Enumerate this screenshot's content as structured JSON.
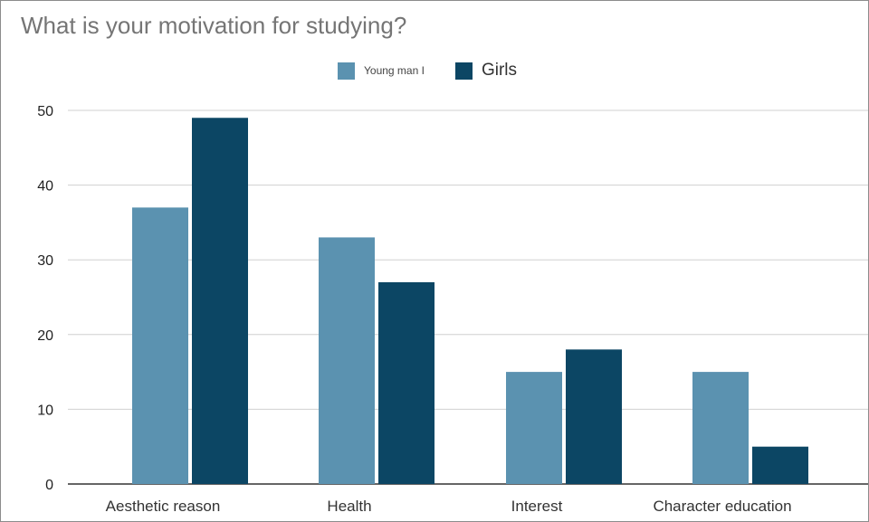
{
  "chart_data": {
    "type": "bar",
    "title": "What is your motivation for studying?",
    "categories": [
      "Aesthetic reason",
      "Health",
      "Interest",
      "Character education"
    ],
    "series": [
      {
        "name": "Young man I",
        "values": [
          37,
          33,
          15,
          15
        ],
        "color": "#5b92b0"
      },
      {
        "name": "Girls",
        "values": [
          49,
          27,
          18,
          5
        ],
        "color": "#0c4664"
      }
    ],
    "ylim": [
      0,
      50
    ],
    "yticks": [
      0,
      10,
      20,
      30,
      40,
      50
    ],
    "grid": true,
    "legend_position": "top-center",
    "xlabel": "",
    "ylabel": ""
  }
}
